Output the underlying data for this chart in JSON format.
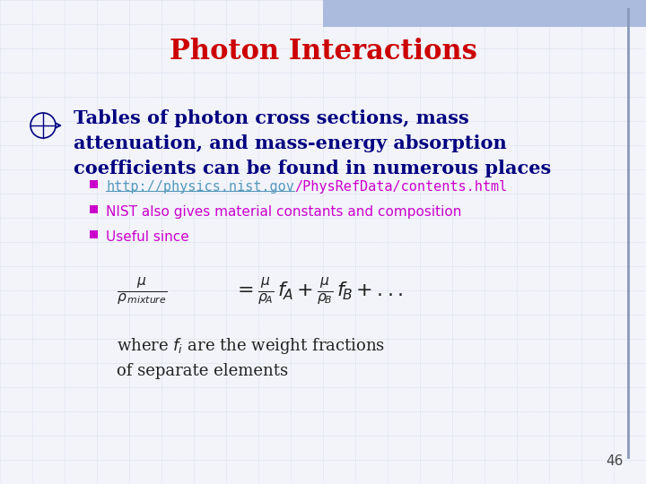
{
  "title": "Photon Interactions",
  "title_color": "#CC0000",
  "title_fontsize": 22,
  "background_color": "#F2F4FA",
  "bullet_main_color": "#000080",
  "bullet_text": [
    "Tables of photon cross sections, mass",
    "attenuation, and mass-energy absorption",
    "coefficients can be found in numerous places"
  ],
  "sub_bullets": [
    {
      "parts": [
        {
          "text": "http://physics.nist.gov",
          "color": "#5599BB",
          "underline": true
        },
        {
          "text": "/PhysRefData/contents.html",
          "color": "#CC00CC",
          "underline": false
        }
      ]
    },
    {
      "parts": [
        {
          "text": "NIST also gives material constants and composition",
          "color": "#CC00CC",
          "underline": false
        }
      ]
    },
    {
      "parts": [
        {
          "text": "Useful since",
          "color": "#CC00CC",
          "underline": false
        }
      ]
    }
  ],
  "formula_color": "#222222",
  "page_number": "46",
  "grid_color": "#C8CEE0",
  "header_bar_color": "#AABBDD",
  "right_bar_color": "#8899BB"
}
